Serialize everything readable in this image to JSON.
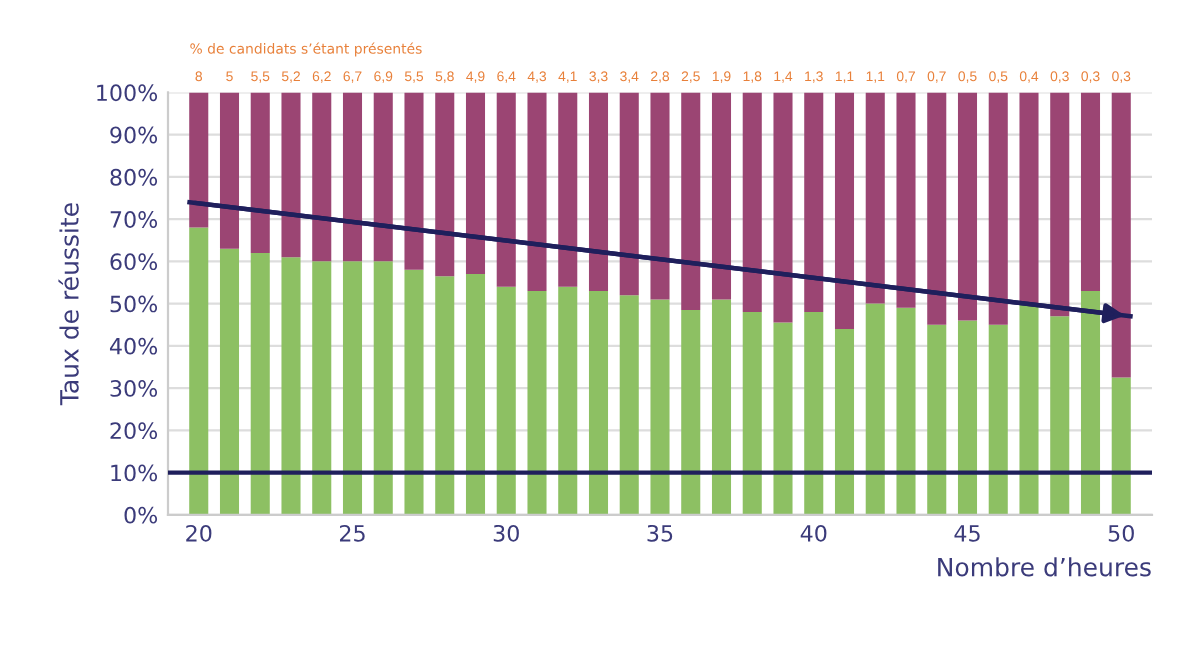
{
  "chart_data": {
    "type": "bar",
    "stacked": true,
    "xlabel": "Nombre d’heures",
    "ylabel": "Taux de réussite",
    "x": [
      20,
      21,
      22,
      23,
      24,
      25,
      26,
      27,
      28,
      29,
      30,
      31,
      32,
      33,
      34,
      35,
      36,
      37,
      38,
      39,
      40,
      41,
      42,
      43,
      44,
      45,
      46,
      47,
      48,
      49,
      50
    ],
    "series": [
      {
        "color": "#8dc063",
        "values": [
          68,
          63,
          62,
          61,
          60,
          60,
          60,
          58,
          56.5,
          57,
          54,
          53,
          54,
          53,
          52,
          51,
          48.5,
          51,
          48,
          45.5,
          48,
          44,
          50,
          49,
          45,
          46,
          45,
          50,
          47,
          53,
          32.5
        ]
      },
      {
        "color": "#9b4573",
        "values": [
          32,
          37,
          38,
          39,
          40,
          40,
          40,
          42,
          43.5,
          43,
          46,
          47,
          46,
          47,
          48,
          49,
          51.5,
          49,
          52,
          54.5,
          52,
          56,
          50,
          51,
          55,
          54,
          55,
          50,
          53,
          47,
          67.5
        ]
      },
      {
        "type": "line",
        "color": "#1f1f5c",
        "x": [
          19.7,
          50.3
        ],
        "values": [
          74,
          47
        ]
      }
    ],
    "xlim": [
      19,
      51
    ],
    "xticks": [
      20,
      25,
      30,
      35,
      40,
      45,
      50
    ],
    "ylim": [
      0,
      100
    ],
    "yticks": [
      {
        "value": 0,
        "label": "0%"
      },
      {
        "value": 10,
        "label": "10%"
      },
      {
        "value": 20,
        "label": "20%"
      },
      {
        "value": 30,
        "label": "30%"
      },
      {
        "value": 40,
        "label": "40%"
      },
      {
        "value": 50,
        "label": "50%"
      },
      {
        "value": 60,
        "label": "60%"
      },
      {
        "value": 70,
        "label": "70%"
      },
      {
        "value": 80,
        "label": "80%"
      },
      {
        "value": 90,
        "label": "90%"
      },
      {
        "value": 100,
        "label": "100%"
      }
    ],
    "grid": "y",
    "ref_lines": [
      {
        "axis": "y",
        "value": 10,
        "color": "#1f1f5c"
      }
    ],
    "annotations": [
      "% de candidats s’étant présentés",
      "8",
      "5",
      "5,5",
      "5,2",
      "6,2",
      "6,7",
      "6,9",
      "5,5",
      "5,8",
      "4,9",
      "6,4",
      "4,3",
      "4,1",
      "3,3",
      "3,4",
      "2,8",
      "2,5",
      "1,9",
      "1,8",
      "1,4",
      "1,3",
      "1,1",
      "1,1",
      "0,7",
      "0,7",
      "0,5",
      "0,5",
      "0,4",
      "0,3",
      "0,3",
      "0,3"
    ]
  }
}
